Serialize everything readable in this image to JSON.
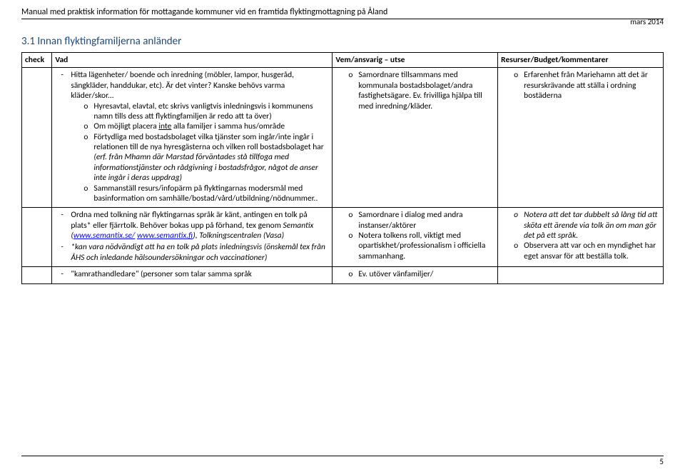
{
  "header": {
    "title": "Manual med praktisk information för mottagande kommuner vid en framtida flyktingmottagning på Åland",
    "date": "mars 2014"
  },
  "section_title": "3.1 Innan flyktingfamiljerna anländer",
  "columns": {
    "c1": "check",
    "c2": "Vad",
    "c3": "Vem/ansvarig – utse",
    "c4": "Resurser/Budget/kommentarer"
  },
  "row1": {
    "vad_intro": "Hitta lägenheter/ boende och inredning (möbler, lampor, husgeråd, sängkläder, handdukar, etc). Är det vinter? Kanske behövs varma kläder/skor...",
    "vad_o1": "Hyresavtal, elavtal, etc skrivs vanligtvis inledningsvis i kommunens namn tills dess att flyktingfamiljen är redo att ta över)",
    "vad_o2_a": "Om möjligt placera ",
    "vad_o2_u": "inte",
    "vad_o2_b": " alla familjer i samma hus/område",
    "vad_o3_a": "Förtydliga med bostadsbolaget vilka tjänster som ingår/inte ingår i relationen till de nya hyresgästerna och vilken roll bostadsbolaget har ",
    "vad_o3_i": "(erf. från Mhamn där Marstad förväntades stå tillfoga med informationstjänster och rådgivning i bostadsfrågor, något de anser inte ingår i deras uppdrag)",
    "vad_o4": "Sammanställ resurs/infopärm på flyktingarnas modersmål med basinformation om samhälle/bostad/vård/utbildning/nödnummer..",
    "vem_o1": "Samordnare tillsammans med kommunala bostadsbolaget/andra fastighetsägare. Ev. frivilliga hjälpa till med inredning/kläder.",
    "res_o1": "Erfarenhet från Mariehamn att det är resurskrävande att ställa i ordning bostäderna"
  },
  "row2": {
    "vad_d1_a": "Ordna med tolkning när flyktingarnas språk är känt, antingen en tolk på plats* eller fjärrtolk. Behöver bokas upp på förhand, tex genom ",
    "vad_d1_i1": "Semantix (",
    "vad_d1_link1": "www.semantix.se/",
    "vad_d1_mid": " ",
    "vad_d1_link2": "www.semantix.fi",
    "vad_d1_i2": "), Tolkningscentralen (Vasa)",
    "vad_d2": "*kan vara nödvändigt att ha en tolk på plats inledningsvis (önskemål tex från ÅHS och inledande hälsoundersökningar och vaccinationer)",
    "vem_o1": "Samordnare i dialog med andra instanser/aktörer",
    "vem_o2": "Notera tolkens roll, viktigt med opartiskhet/professionalism i officiella sammanhang.",
    "res_o1": "Notera att det tar dubbelt så lång tid att sköta ett ärende via tolk än om man gör det på ett språk.",
    "res_o2": "Observera att var och en myndighet har eget ansvar för att beställa tolk."
  },
  "row3": {
    "vad_d1": "\"kamrathandledare\" (personer som talar samma språk",
    "vem_o1": "Ev. utöver vänfamiljer/"
  },
  "page_number": "5"
}
